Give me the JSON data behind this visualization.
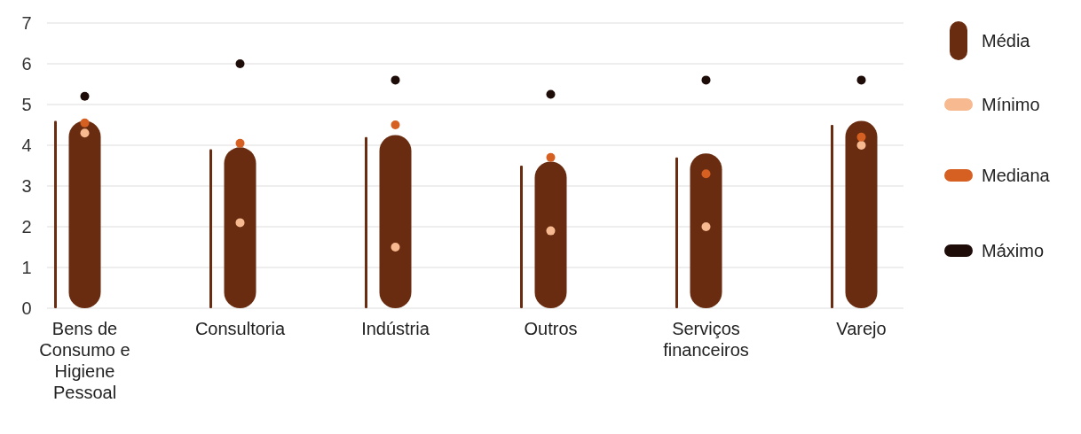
{
  "chart_data": {
    "type": "bar",
    "categories": [
      "Bens de Consumo e Higiene Pessoal",
      "Consultoria",
      "Indústria",
      "Outros",
      "Serviços financeiros",
      "Varejo"
    ],
    "ylim": [
      0,
      7
    ],
    "yticks": [
      0,
      1,
      2,
      3,
      4,
      5,
      6,
      7
    ],
    "grid": "y",
    "legend": "right",
    "marker": "circle",
    "series": [
      {
        "color": "#692c10",
        "values": [
          4.6,
          3.9,
          4.2,
          3.5,
          3.7,
          4.5
        ]
      },
      {
        "name": "Média",
        "color": "#692c10",
        "values": [
          4.6,
          3.95,
          4.25,
          3.6,
          3.8,
          4.6
        ]
      },
      {
        "type": "scatter",
        "name": "Mínimo",
        "color": "#f7b98f",
        "x": [
          "Bens de Consumo e Higiene Pessoal",
          "Consultoria",
          "Indústria",
          "Outros",
          "Serviços financeiros",
          "Varejo"
        ],
        "values": [
          4.3,
          2.1,
          1.5,
          1.9,
          2.0,
          4.0
        ]
      },
      {
        "type": "scatter",
        "name": "Mediana",
        "color": "#d65f22",
        "x": [
          "Bens de Consumo e Higiene Pessoal",
          "Consultoria",
          "Indústria",
          "Outros",
          "Serviços financeiros",
          "Varejo"
        ],
        "values": [
          4.55,
          4.05,
          4.5,
          3.7,
          3.3,
          4.2
        ]
      },
      {
        "type": "scatter",
        "name": "Máximo",
        "color": "#1e0c08",
        "x": [
          "Bens de Consumo e Higiene Pessoal",
          "Consultoria",
          "Indústria",
          "Outros",
          "Serviços financeiros",
          "Varejo"
        ],
        "values": [
          5.2,
          6.0,
          5.6,
          5.25,
          5.6,
          5.6
        ]
      }
    ]
  }
}
